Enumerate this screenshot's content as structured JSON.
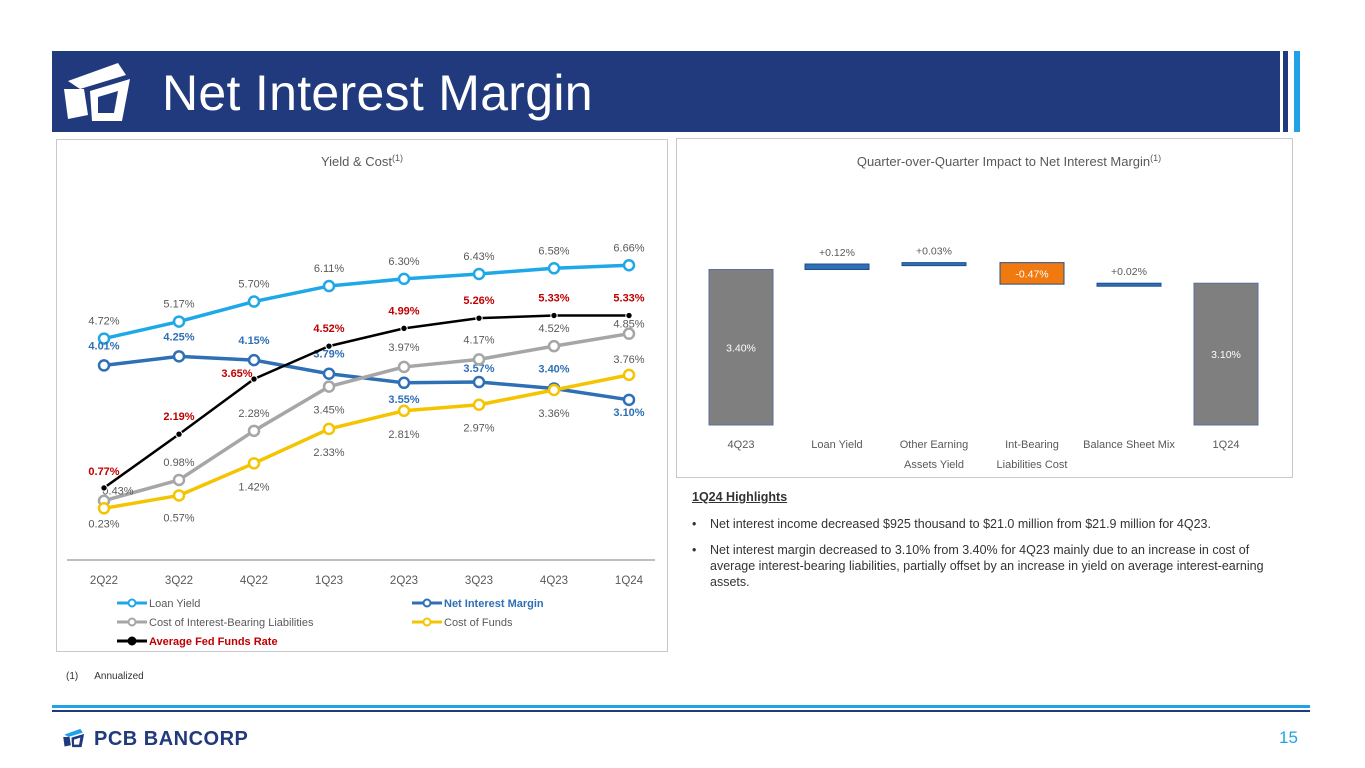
{
  "header": {
    "title": "Net Interest Margin"
  },
  "colors": {
    "navy": "#213a7d",
    "accent": "#1fa3e6",
    "loan_yield": "#1fa8e8",
    "nim": "#2e6fb5",
    "cost_ibl": "#a6a6a6",
    "cost_funds": "#f5c400",
    "fed_funds": "#000000",
    "red": "#c00000",
    "orange": "#f07a10"
  },
  "left_chart": {
    "title": "Yield & Cost",
    "title_sup": "(1)"
  },
  "right_chart": {
    "title": "Quarter-over-Quarter Impact to Net Interest Margin",
    "title_sup": "(1)"
  },
  "chart_data": [
    {
      "type": "line",
      "title": "Yield & Cost",
      "categories": [
        "2Q22",
        "3Q22",
        "4Q22",
        "1Q23",
        "2Q23",
        "3Q23",
        "4Q23",
        "1Q24"
      ],
      "series": [
        {
          "name": "Loan Yield",
          "values": [
            4.72,
            5.17,
            5.7,
            6.11,
            6.3,
            6.43,
            6.58,
            6.66
          ],
          "labels": [
            "4.72%",
            "5.17%",
            "5.70%",
            "6.11%",
            "6.30%",
            "6.43%",
            "6.58%",
            "6.66%"
          ]
        },
        {
          "name": "Net Interest Margin",
          "values": [
            4.01,
            4.25,
            4.15,
            3.79,
            3.55,
            3.57,
            3.4,
            3.1
          ],
          "labels": [
            "4.01%",
            "4.25%",
            "4.15%",
            "3.79%",
            "3.55%",
            "3.57%",
            "3.40%",
            "3.10%"
          ]
        },
        {
          "name": "Cost of Interest-Bearing Liabilities",
          "values": [
            0.43,
            0.98,
            2.28,
            3.45,
            3.97,
            4.17,
            4.52,
            4.85
          ],
          "labels": [
            "0.43%",
            "0.98%",
            "2.28%",
            "3.45%",
            "3.97%",
            "4.17%",
            "4.52%",
            "4.85%"
          ]
        },
        {
          "name": "Cost of Funds",
          "values": [
            0.23,
            0.57,
            1.42,
            2.33,
            2.81,
            2.97,
            3.36,
            3.76
          ],
          "labels": [
            "0.23%",
            "0.57%",
            "1.42%",
            "2.33%",
            "2.81%",
            "2.97%",
            "3.36%",
            "3.76%"
          ]
        },
        {
          "name": "Average Fed Funds Rate",
          "values": [
            0.77,
            2.19,
            3.65,
            4.52,
            4.99,
            5.26,
            5.33,
            5.33
          ],
          "labels": [
            "0.77%",
            "2.19%",
            "3.65%",
            "4.52%",
            "4.99%",
            "5.26%",
            "5.33%",
            "5.33%"
          ]
        }
      ],
      "legend": "bottom",
      "grid": false
    },
    {
      "type": "bar",
      "subtype": "waterfall",
      "title": "Quarter-over-Quarter Impact to Net Interest Margin",
      "categories": [
        "4Q23",
        "Loan Yield",
        "Other Earning Assets Yield",
        "Int-Bearing Liabilities Cost",
        "Balance Sheet Mix",
        "1Q24"
      ],
      "category_lines": [
        [
          "4Q23"
        ],
        [
          "Loan Yield"
        ],
        [
          "Other Earning",
          "Assets Yield"
        ],
        [
          "Int-Bearing",
          "Liabilities Cost"
        ],
        [
          "Balance Sheet Mix"
        ],
        [
          "1Q24"
        ]
      ],
      "values": [
        3.4,
        0.12,
        0.03,
        -0.47,
        0.02,
        3.1
      ],
      "labels": [
        "3.40%",
        "+0.12%",
        "+0.03%",
        "-0.47%",
        "+0.02%",
        "3.10%"
      ],
      "kinds": [
        "total",
        "delta",
        "delta",
        "delta",
        "delta",
        "total"
      ]
    }
  ],
  "highlights": {
    "title": "1Q24 Highlights",
    "bullet": "•",
    "items": [
      "Net interest income decreased $925 thousand to $21.0 million from $21.9 million for 4Q23.",
      "Net interest margin decreased to 3.10% from 3.40% for 4Q23 mainly due to an increase in cost of average interest-bearing liabilities, partially offset by an increase in yield on average interest-earning assets."
    ]
  },
  "footnote": {
    "marker": "(1)",
    "text": "Annualized"
  },
  "footer": {
    "brand": "PCB BANCORP",
    "page": "15"
  }
}
